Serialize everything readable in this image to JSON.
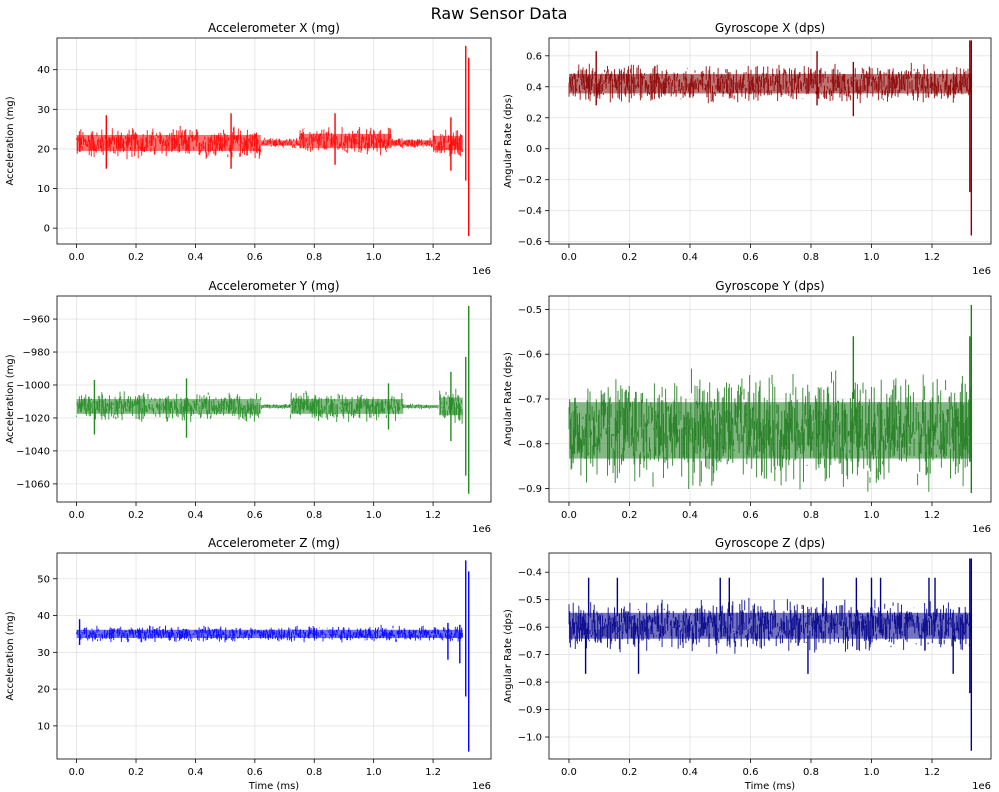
{
  "figure": {
    "title": "Raw Sensor Data"
  },
  "chart_data": [
    {
      "type": "line",
      "title": "Accelerometer X (mg)",
      "xlabel": "",
      "ylabel": "Acceleration (mg)",
      "x_offset_label": "1e6",
      "xlim": [
        -0.066,
        1.395
      ],
      "ylim": [
        -4,
        48
      ],
      "xticks": [
        0.0,
        0.2,
        0.4,
        0.6,
        0.8,
        1.0,
        1.2
      ],
      "xtick_labels": [
        "0.0",
        "0.2",
        "0.4",
        "0.6",
        "0.8",
        "1.0",
        "1.2"
      ],
      "yticks": [
        0,
        10,
        20,
        30,
        40
      ],
      "ytick_labels": [
        "0",
        "10",
        "20",
        "30",
        "40"
      ],
      "color": "#ff0000",
      "series": [
        {
          "name": "Accelerometer X",
          "x_range": [
            0.0,
            1.33
          ],
          "segments": [
            {
              "x_start": 0.0,
              "x_end": 0.62,
              "center": 21.5,
              "spread": 4.5
            },
            {
              "x_start": 0.62,
              "x_end": 0.75,
              "center": 21.5,
              "spread": 1.5
            },
            {
              "x_start": 0.75,
              "x_end": 1.06,
              "center": 22.0,
              "spread": 4.0
            },
            {
              "x_start": 1.06,
              "x_end": 1.2,
              "center": 21.5,
              "spread": 1.5
            },
            {
              "x_start": 1.2,
              "x_end": 1.3,
              "center": 21.5,
              "spread": 4.0
            }
          ],
          "spikes": [
            {
              "x": 0.1,
              "min": 15.0,
              "max": 28.5
            },
            {
              "x": 0.52,
              "min": 15.0,
              "max": 29.0
            },
            {
              "x": 0.87,
              "min": 16.0,
              "max": 29.0
            },
            {
              "x": 1.26,
              "min": 14.5,
              "max": 28.0
            },
            {
              "x": 1.31,
              "min": 12.0,
              "max": 46.0
            },
            {
              "x": 1.32,
              "min": -2.0,
              "max": 43.0
            }
          ]
        }
      ]
    },
    {
      "type": "line",
      "title": "Gyroscope X (dps)",
      "xlabel": "",
      "ylabel": "Angular Rate (dps)",
      "x_offset_label": "1e6",
      "xlim": [
        -0.066,
        1.395
      ],
      "ylim": [
        -0.615,
        0.715
      ],
      "xticks": [
        0.0,
        0.2,
        0.4,
        0.6,
        0.8,
        1.0,
        1.2
      ],
      "xtick_labels": [
        "0.0",
        "0.2",
        "0.4",
        "0.6",
        "0.8",
        "1.0",
        "1.2"
      ],
      "yticks": [
        -0.6,
        -0.4,
        -0.2,
        0.0,
        0.2,
        0.4,
        0.6
      ],
      "ytick_labels": [
        "−0.6",
        "−0.4",
        "−0.2",
        "0.0",
        "0.2",
        "0.4",
        "0.6"
      ],
      "color": "#8b0000",
      "series": [
        {
          "name": "Gyroscope X",
          "x_range": [
            0.0,
            1.33
          ],
          "segments": [
            {
              "x_start": 0.0,
              "x_end": 1.33,
              "center": 0.42,
              "spread": 0.14
            }
          ],
          "spikes": [
            {
              "x": 0.09,
              "min": 0.28,
              "max": 0.63
            },
            {
              "x": 0.82,
              "min": 0.28,
              "max": 0.63
            },
            {
              "x": 0.94,
              "min": 0.21,
              "max": 0.56
            },
            {
              "x": 1.325,
              "min": -0.28,
              "max": 0.7
            },
            {
              "x": 1.33,
              "min": -0.56,
              "max": 0.7
            }
          ]
        }
      ]
    },
    {
      "type": "line",
      "title": "Accelerometer Y (mg)",
      "xlabel": "",
      "ylabel": "Acceleration (mg)",
      "x_offset_label": "1e6",
      "xlim": [
        -0.066,
        1.395
      ],
      "ylim": [
        -1071,
        -946
      ],
      "xticks": [
        0.0,
        0.2,
        0.4,
        0.6,
        0.8,
        1.0,
        1.2
      ],
      "xtick_labels": [
        "0.0",
        "0.2",
        "0.4",
        "0.6",
        "0.8",
        "1.0",
        "1.2"
      ],
      "yticks": [
        -1060,
        -1040,
        -1020,
        -1000,
        -980,
        -960
      ],
      "ytick_labels": [
        "−1060",
        "−1040",
        "−1020",
        "−1000",
        "−980",
        "−960"
      ],
      "color": "#228b22",
      "series": [
        {
          "name": "Accelerometer Y",
          "x_range": [
            0.0,
            1.33
          ],
          "segments": [
            {
              "x_start": 0.0,
              "x_end": 0.62,
              "center": -1013,
              "spread": 10
            },
            {
              "x_start": 0.62,
              "x_end": 0.72,
              "center": -1013,
              "spread": 2
            },
            {
              "x_start": 0.72,
              "x_end": 1.1,
              "center": -1013,
              "spread": 10
            },
            {
              "x_start": 1.1,
              "x_end": 1.22,
              "center": -1013,
              "spread": 2
            },
            {
              "x_start": 1.22,
              "x_end": 1.3,
              "center": -1013,
              "spread": 12
            }
          ],
          "spikes": [
            {
              "x": 0.06,
              "min": -1030,
              "max": -997
            },
            {
              "x": 0.37,
              "min": -1032,
              "max": -996
            },
            {
              "x": 1.05,
              "min": -1027,
              "max": -999
            },
            {
              "x": 1.26,
              "min": -1034,
              "max": -992
            },
            {
              "x": 1.31,
              "min": -1055,
              "max": -983
            },
            {
              "x": 1.32,
              "min": -1066,
              "max": -952
            }
          ]
        }
      ]
    },
    {
      "type": "line",
      "title": "Gyroscope Y (dps)",
      "xlabel": "",
      "ylabel": "Angular Rate (dps)",
      "x_offset_label": "1e6",
      "xlim": [
        -0.066,
        1.395
      ],
      "ylim": [
        -0.93,
        -0.47
      ],
      "xticks": [
        0.0,
        0.2,
        0.4,
        0.6,
        0.8,
        1.0,
        1.2
      ],
      "xtick_labels": [
        "0.0",
        "0.2",
        "0.4",
        "0.6",
        "0.8",
        "1.0",
        "1.2"
      ],
      "yticks": [
        -0.9,
        -0.8,
        -0.7,
        -0.6,
        -0.5
      ],
      "ytick_labels": [
        "−0.9",
        "−0.8",
        "−0.7",
        "−0.6",
        "−0.5"
      ],
      "color": "#1e7b1e",
      "series": [
        {
          "name": "Gyroscope Y",
          "x_range": [
            0.0,
            1.33
          ],
          "segments": [
            {
              "x_start": 0.0,
              "x_end": 1.33,
              "center": -0.77,
              "spread": 0.14
            }
          ],
          "spikes": [
            {
              "x": 0.94,
              "min": -0.7,
              "max": -0.56
            },
            {
              "x": 1.325,
              "min": -0.84,
              "max": -0.56
            },
            {
              "x": 1.33,
              "min": -0.91,
              "max": -0.49
            }
          ]
        }
      ]
    },
    {
      "type": "line",
      "title": "Accelerometer Z (mg)",
      "xlabel": "Time (ms)",
      "ylabel": "Acceleration (mg)",
      "x_offset_label": "1e6",
      "xlim": [
        -0.066,
        1.395
      ],
      "ylim": [
        1,
        57
      ],
      "xticks": [
        0.0,
        0.2,
        0.4,
        0.6,
        0.8,
        1.0,
        1.2
      ],
      "xtick_labels": [
        "0.0",
        "0.2",
        "0.4",
        "0.6",
        "0.8",
        "1.0",
        "1.2"
      ],
      "yticks": [
        10,
        20,
        30,
        40,
        50
      ],
      "ytick_labels": [
        "10",
        "20",
        "30",
        "40",
        "50"
      ],
      "color": "#0000ff",
      "series": [
        {
          "name": "Accelerometer Z",
          "x_range": [
            0.0,
            1.33
          ],
          "segments": [
            {
              "x_start": 0.0,
              "x_end": 1.3,
              "center": 35.0,
              "spread": 2.5
            }
          ],
          "spikes": [
            {
              "x": 0.01,
              "min": 32.0,
              "max": 39.0
            },
            {
              "x": 1.25,
              "min": 28.0,
              "max": 38.0
            },
            {
              "x": 1.29,
              "min": 27.0,
              "max": 37.5
            },
            {
              "x": 1.31,
              "min": 18.0,
              "max": 55.0
            },
            {
              "x": 1.32,
              "min": 3.0,
              "max": 52.0
            }
          ]
        }
      ]
    },
    {
      "type": "line",
      "title": "Gyroscope Z (dps)",
      "xlabel": "Time (ms)",
      "ylabel": "Angular Rate (dps)",
      "x_offset_label": "1e6",
      "xlim": [
        -0.066,
        1.395
      ],
      "ylim": [
        -1.08,
        -0.33
      ],
      "xticks": [
        0.0,
        0.2,
        0.4,
        0.6,
        0.8,
        1.0,
        1.2
      ],
      "xtick_labels": [
        "0.0",
        "0.2",
        "0.4",
        "0.6",
        "0.8",
        "1.0",
        "1.2"
      ],
      "yticks": [
        -1.0,
        -0.9,
        -0.8,
        -0.7,
        -0.6,
        -0.5,
        -0.4
      ],
      "ytick_labels": [
        "−1.0",
        "−0.9",
        "−0.8",
        "−0.7",
        "−0.6",
        "−0.5",
        "−0.4"
      ],
      "color": "#00008b",
      "series": [
        {
          "name": "Gyroscope Z",
          "x_range": [
            0.0,
            1.33
          ],
          "segments": [
            {
              "x_start": 0.0,
              "x_end": 1.33,
              "center": -0.595,
              "spread": 0.105
            }
          ],
          "spikes": [
            {
              "x": 0.055,
              "min": -0.77,
              "max": -0.63
            },
            {
              "x": 0.065,
              "min": -0.56,
              "max": -0.42
            },
            {
              "x": 0.16,
              "min": -0.56,
              "max": -0.42
            },
            {
              "x": 0.23,
              "min": -0.77,
              "max": -0.63
            },
            {
              "x": 0.5,
              "min": -0.56,
              "max": -0.42
            },
            {
              "x": 0.53,
              "min": -0.56,
              "max": -0.42
            },
            {
              "x": 0.79,
              "min": -0.77,
              "max": -0.63
            },
            {
              "x": 0.84,
              "min": -0.56,
              "max": -0.42
            },
            {
              "x": 0.95,
              "min": -0.56,
              "max": -0.42
            },
            {
              "x": 1.0,
              "min": -0.56,
              "max": -0.42
            },
            {
              "x": 1.03,
              "min": -0.56,
              "max": -0.42
            },
            {
              "x": 1.19,
              "min": -0.56,
              "max": -0.42
            },
            {
              "x": 1.21,
              "min": -0.56,
              "max": -0.42
            },
            {
              "x": 1.27,
              "min": -0.77,
              "max": -0.63
            },
            {
              "x": 1.325,
              "min": -0.84,
              "max": -0.35
            },
            {
              "x": 1.33,
              "min": -1.05,
              "max": -0.35
            }
          ]
        }
      ]
    }
  ]
}
